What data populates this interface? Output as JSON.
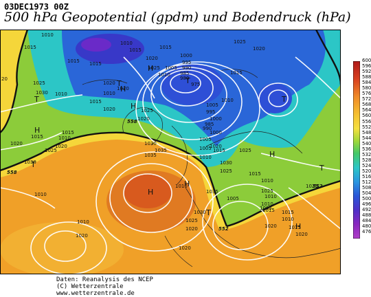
{
  "header": {
    "date": "03DEC1973 00Z",
    "title": "500 hPa Geopotential (gpdm) und Bodendruck (hPa)"
  },
  "credits": {
    "line1": "Daten: Reanalysis des NCEP",
    "line2": "(C) Wetterzentrale",
    "line3": "www.wetterzentrale.de"
  },
  "colorbar": {
    "labels": [
      "600",
      "596",
      "592",
      "588",
      "584",
      "580",
      "576",
      "572",
      "568",
      "564",
      "560",
      "556",
      "552",
      "548",
      "544",
      "540",
      "536",
      "532",
      "528",
      "524",
      "520",
      "516",
      "512",
      "508",
      "504",
      "500",
      "496",
      "492",
      "488",
      "484",
      "480",
      "476"
    ]
  },
  "isobar_labels": [
    {
      "text": "1010"
    },
    {
      "text": "1015"
    },
    {
      "text": "1015"
    },
    {
      "text": "1015"
    },
    {
      "text": "1020"
    },
    {
      "text": "1020"
    },
    {
      "text": "1025"
    },
    {
      "text": "1030"
    },
    {
      "text": "1010"
    },
    {
      "text": "1010"
    },
    {
      "text": "1015"
    },
    {
      "text": "1020"
    },
    {
      "text": "1010"
    },
    {
      "text": "1015"
    },
    {
      "text": "1020"
    },
    {
      "text": "1025"
    },
    {
      "text": "1025"
    },
    {
      "text": "1020"
    },
    {
      "text": "1015"
    },
    {
      "text": "1025"
    },
    {
      "text": "1020"
    },
    {
      "text": "1015"
    },
    {
      "text": "1010"
    },
    {
      "text": "1005"
    },
    {
      "text": "1000"
    },
    {
      "text": "995"
    },
    {
      "text": "990"
    },
    {
      "text": "985"
    },
    {
      "text": "980"
    },
    {
      "text": "975"
    },
    {
      "text": "1010"
    },
    {
      "text": "1005"
    },
    {
      "text": "1000"
    },
    {
      "text": "995"
    },
    {
      "text": "990"
    },
    {
      "text": "985"
    },
    {
      "text": "1025"
    },
    {
      "text": "1030"
    },
    {
      "text": "1035"
    },
    {
      "text": "1020"
    },
    {
      "text": "1015"
    },
    {
      "text": "1010"
    },
    {
      "text": "1005"
    },
    {
      "text": "1000"
    },
    {
      "text": "1005"
    },
    {
      "text": "1010"
    },
    {
      "text": "1015"
    },
    {
      "text": "1020"
    },
    {
      "text": "1025"
    },
    {
      "text": "1030"
    },
    {
      "text": "1035"
    },
    {
      "text": "1030"
    },
    {
      "text": "1025"
    },
    {
      "text": "1020"
    },
    {
      "text": "1015"
    },
    {
      "text": "1010"
    },
    {
      "text": "1005"
    },
    {
      "text": "1010"
    },
    {
      "text": "1015"
    },
    {
      "text": "1020"
    },
    {
      "text": "1010"
    },
    {
      "text": "1010"
    },
    {
      "text": "1010"
    },
    {
      "text": "1015"
    },
    {
      "text": "1020"
    },
    {
      "text": "1025"
    },
    {
      "text": "1030"
    },
    {
      "text": "1035"
    },
    {
      "text": "1025"
    },
    {
      "text": "1020"
    },
    {
      "text": "1020"
    },
    {
      "text": "1015"
    },
    {
      "text": "1010"
    },
    {
      "text": "1005"
    },
    {
      "text": "1010"
    },
    {
      "text": "1015"
    },
    {
      "text": "1020"
    },
    {
      "text": "1025"
    }
  ],
  "centers": [
    {
      "text": "T"
    },
    {
      "text": "H"
    },
    {
      "text": "T"
    },
    {
      "text": "H"
    },
    {
      "text": "T"
    },
    {
      "text": "T"
    },
    {
      "text": "H"
    },
    {
      "text": "H"
    },
    {
      "text": "H"
    },
    {
      "text": "H"
    },
    {
      "text": "T"
    },
    {
      "text": "T"
    },
    {
      "text": "H"
    },
    {
      "text": "T"
    },
    {
      "text": "H"
    }
  ],
  "contour_labels": [
    {
      "text": "558"
    },
    {
      "text": "558"
    },
    {
      "text": "552"
    },
    {
      "text": "552"
    }
  ],
  "edge_labels": [
    {
      "text": "20"
    }
  ]
}
